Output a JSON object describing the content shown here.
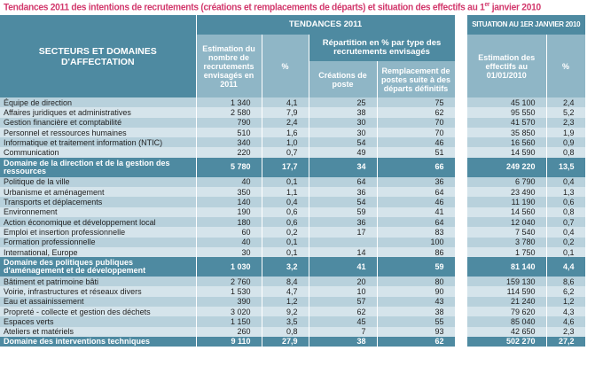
{
  "title": {
    "text": "Tendances 2011 des intentions de recrutements (créations et remplacements de départs) et situation des effectifs au 1",
    "sup": "er",
    "tail": " janvier 2010"
  },
  "header": {
    "sector": "SECTEURS ET DOMAINES D'AFFECTATION",
    "tendances": "TENDANCES 2011",
    "situation": "SITUATION AU 1ER JANVIER 2010",
    "estimation": "Estimation du nombre de recrutements envisagés en 2011",
    "pct": "%",
    "repartition": "Répartition en % par type des recrutements envisagés",
    "creations": "Créations de poste",
    "remplacement": "Remplacement de postes suite à des départs définitifs",
    "effectifs": "Estimation des effectifs au 01/01/2010",
    "pct2": "%"
  },
  "colors": {
    "title": "#d2386c",
    "header": "#4e8aa1",
    "subheader": "#8fb6c6",
    "row_dark": "#b8d1dc",
    "row_light": "#d5e4eb"
  },
  "rows": [
    {
      "label": "Équipe de direction",
      "est": "1 340",
      "pct": "4,1",
      "cre": "25",
      "rem": "75",
      "eff": "45 100",
      "pct2": "2,4"
    },
    {
      "label": "Affaires juridiques et administratives",
      "est": "2 580",
      "pct": "7,9",
      "cre": "38",
      "rem": "62",
      "eff": "95 550",
      "pct2": "5,2"
    },
    {
      "label": "Gestion financière et comptabilité",
      "est": "790",
      "pct": "2,4",
      "cre": "30",
      "rem": "70",
      "eff": "41 570",
      "pct2": "2,3"
    },
    {
      "label": "Personnel et ressources humaines",
      "est": "510",
      "pct": "1,6",
      "cre": "30",
      "rem": "70",
      "eff": "35 850",
      "pct2": "1,9"
    },
    {
      "label": "Informatique et traitement information (NTIC)",
      "est": "340",
      "pct": "1,0",
      "cre": "54",
      "rem": "46",
      "eff": "16 560",
      "pct2": "0,9"
    },
    {
      "label": "Communication",
      "est": "220",
      "pct": "0,7",
      "cre": "49",
      "rem": "51",
      "eff": "14 590",
      "pct2": "0,8"
    },
    {
      "label": "Domaine de la direction et de la gestion des ressources",
      "est": "5 780",
      "pct": "17,7",
      "cre": "34",
      "rem": "66",
      "eff": "249 220",
      "pct2": "13,5",
      "domain": true
    },
    {
      "label": "Politique de la ville",
      "est": "40",
      "pct": "0,1",
      "cre": "64",
      "rem": "36",
      "eff": "6 790",
      "pct2": "0,4"
    },
    {
      "label": "Urbanisme et aménagement",
      "est": "350",
      "pct": "1,1",
      "cre": "36",
      "rem": "64",
      "eff": "23 490",
      "pct2": "1,3"
    },
    {
      "label": "Transports et déplacements",
      "est": "140",
      "pct": "0,4",
      "cre": "54",
      "rem": "46",
      "eff": "11 190",
      "pct2": "0,6"
    },
    {
      "label": "Environnement",
      "est": "190",
      "pct": "0,6",
      "cre": "59",
      "rem": "41",
      "eff": "14 560",
      "pct2": "0,8"
    },
    {
      "label": "Action économique et développement local",
      "est": "180",
      "pct": "0,6",
      "cre": "36",
      "rem": "64",
      "eff": "12 040",
      "pct2": "0,7"
    },
    {
      "label": "Emploi et insertion professionnelle",
      "est": "60",
      "pct": "0,2",
      "cre": "17",
      "rem": "83",
      "eff": "7 540",
      "pct2": "0,4"
    },
    {
      "label": "Formation professionnelle",
      "est": "40",
      "pct": "0,1",
      "cre": "",
      "rem": "100",
      "eff": "3 780",
      "pct2": "0,2"
    },
    {
      "label": "International, Europe",
      "est": "30",
      "pct": "0,1",
      "cre": "14",
      "rem": "86",
      "eff": "1 750",
      "pct2": "0,1"
    },
    {
      "label": "Domaine des politiques publiques d'aménagement et de développement",
      "est": "1 030",
      "pct": "3,2",
      "cre": "41",
      "rem": "59",
      "eff": "81 140",
      "pct2": "4,4",
      "domain": true
    },
    {
      "label": "Bâtiment et patrimoine bâti",
      "est": "2 760",
      "pct": "8,4",
      "cre": "20",
      "rem": "80",
      "eff": "159 130",
      "pct2": "8,6"
    },
    {
      "label": "Voirie, infrastructures et réseaux divers",
      "est": "1 530",
      "pct": "4,7",
      "cre": "10",
      "rem": "90",
      "eff": "114 590",
      "pct2": "6,2"
    },
    {
      "label": "Eau et assainissement",
      "est": "390",
      "pct": "1,2",
      "cre": "57",
      "rem": "43",
      "eff": "21 240",
      "pct2": "1,2"
    },
    {
      "label": "Propreté - collecte et gestion des déchets",
      "est": "3 020",
      "pct": "9,2",
      "cre": "62",
      "rem": "38",
      "eff": "79 620",
      "pct2": "4,3"
    },
    {
      "label": "Espaces verts",
      "est": "1 150",
      "pct": "3,5",
      "cre": "45",
      "rem": "55",
      "eff": "85 040",
      "pct2": "4,6"
    },
    {
      "label": "Ateliers et matériels",
      "est": "260",
      "pct": "0,8",
      "cre": "7",
      "rem": "93",
      "eff": "42 650",
      "pct2": "2,3"
    },
    {
      "label": "Domaine des interventions techniques",
      "est": "9 110",
      "pct": "27,9",
      "cre": "38",
      "rem": "62",
      "eff": "502 270",
      "pct2": "27,2",
      "domain": true
    }
  ]
}
